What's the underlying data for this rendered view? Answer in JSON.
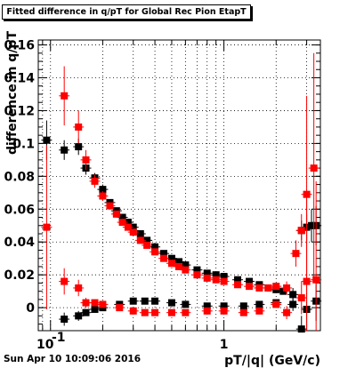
{
  "title": "Fitted difference in q/pT for Global Rec Pion EtapT",
  "footer_timestamp": "Sun Apr 10 10:09:06 2016",
  "chart_data": {
    "type": "scatter",
    "title": "Fitted difference in q/pT for Global Rec Pion EtapT",
    "xlabel": "pT/|q| (GeV/c)",
    "ylabel": "difference in q/pT",
    "x_scale": "log",
    "xlim": [
      0.085,
      3.6
    ],
    "ylim": [
      -0.014,
      0.163
    ],
    "grid": true,
    "x_ticks": [
      {
        "value": 0.1,
        "label": "10",
        "sup": "-1"
      },
      {
        "value": 1,
        "label": "1",
        "sup": ""
      }
    ],
    "y_ticks": [
      {
        "value": 0,
        "label": "0"
      },
      {
        "value": 0.02,
        "label": "0.02"
      },
      {
        "value": 0.04,
        "label": "0.04"
      },
      {
        "value": 0.06,
        "label": "0.06"
      },
      {
        "value": 0.08,
        "label": "0.08"
      },
      {
        "value": 0.1,
        "label": "0.1"
      },
      {
        "value": 0.12,
        "label": "0.12"
      },
      {
        "value": 0.14,
        "label": "0.14"
      },
      {
        "value": 0.16,
        "label": "0.16"
      }
    ],
    "series": [
      {
        "color": "#000000",
        "points": [
          {
            "x": 0.095,
            "y": 0.102,
            "err": 0.012
          },
          {
            "x": 0.12,
            "y": 0.096,
            "err": 0.006
          },
          {
            "x": 0.145,
            "y": 0.098,
            "err": 0.005
          },
          {
            "x": 0.16,
            "y": 0.085,
            "err": 0.004
          },
          {
            "x": 0.18,
            "y": 0.079,
            "err": 0.003
          },
          {
            "x": 0.2,
            "y": 0.072,
            "err": 0.003
          },
          {
            "x": 0.22,
            "y": 0.064,
            "err": 0.002
          },
          {
            "x": 0.24,
            "y": 0.059,
            "err": 0.002
          },
          {
            "x": 0.26,
            "y": 0.055,
            "err": 0.002
          },
          {
            "x": 0.28,
            "y": 0.052,
            "err": 0.002
          },
          {
            "x": 0.3,
            "y": 0.049,
            "err": 0.002
          },
          {
            "x": 0.33,
            "y": 0.045,
            "err": 0.001
          },
          {
            "x": 0.36,
            "y": 0.041,
            "err": 0.001
          },
          {
            "x": 0.4,
            "y": 0.037,
            "err": 0.001
          },
          {
            "x": 0.45,
            "y": 0.033,
            "err": 0.001
          },
          {
            "x": 0.5,
            "y": 0.03,
            "err": 0.001
          },
          {
            "x": 0.55,
            "y": 0.028,
            "err": 0.001
          },
          {
            "x": 0.6,
            "y": 0.026,
            "err": 0.001
          },
          {
            "x": 0.7,
            "y": 0.023,
            "err": 0.001
          },
          {
            "x": 0.8,
            "y": 0.021,
            "err": 0.001
          },
          {
            "x": 0.9,
            "y": 0.02,
            "err": 0.001
          },
          {
            "x": 1.0,
            "y": 0.019,
            "err": 0.001
          },
          {
            "x": 1.2,
            "y": 0.017,
            "err": 0.001
          },
          {
            "x": 1.4,
            "y": 0.016,
            "err": 0.001
          },
          {
            "x": 1.6,
            "y": 0.014,
            "err": 0.001
          },
          {
            "x": 1.8,
            "y": 0.012,
            "err": 0.001
          },
          {
            "x": 2.0,
            "y": 0.011,
            "err": 0.002
          },
          {
            "x": 2.2,
            "y": 0.01,
            "err": 0.002
          },
          {
            "x": 2.5,
            "y": 0.008,
            "err": 0.004
          },
          {
            "x": 2.8,
            "y": 0.047,
            "err": 0.006
          },
          {
            "x": 3.0,
            "y": 0.049,
            "err": 0.008
          },
          {
            "x": 3.2,
            "y": 0.05,
            "err": 0.01
          },
          {
            "x": 3.4,
            "y": 0.05,
            "err": 0.012
          },
          {
            "x": 0.12,
            "y": -0.007,
            "err": 0.004
          },
          {
            "x": 0.145,
            "y": -0.005,
            "err": 0.003
          },
          {
            "x": 0.16,
            "y": -0.003,
            "err": 0.002
          },
          {
            "x": 0.18,
            "y": -0.001,
            "err": 0.002
          },
          {
            "x": 0.2,
            "y": 0.0,
            "err": 0.001
          },
          {
            "x": 0.25,
            "y": 0.002,
            "err": 0.001
          },
          {
            "x": 0.3,
            "y": 0.004,
            "err": 0.001
          },
          {
            "x": 0.35,
            "y": 0.004,
            "err": 0.001
          },
          {
            "x": 0.4,
            "y": 0.004,
            "err": 0.001
          },
          {
            "x": 0.5,
            "y": 0.003,
            "err": 0.001
          },
          {
            "x": 0.6,
            "y": 0.002,
            "err": 0.001
          },
          {
            "x": 0.8,
            "y": 0.001,
            "err": 0.001
          },
          {
            "x": 1.0,
            "y": 0.001,
            "err": 0.001
          },
          {
            "x": 1.3,
            "y": 0.001,
            "err": 0.001
          },
          {
            "x": 1.6,
            "y": 0.002,
            "err": 0.001
          },
          {
            "x": 2.0,
            "y": 0.003,
            "err": 0.002
          },
          {
            "x": 2.5,
            "y": 0.002,
            "err": 0.004
          },
          {
            "x": 2.8,
            "y": -0.013,
            "err": 0.008
          },
          {
            "x": 3.0,
            "y": -0.001,
            "err": 0.01
          },
          {
            "x": 3.4,
            "y": 0.004,
            "err": 0.012
          }
        ]
      },
      {
        "color": "#ff0000",
        "points": [
          {
            "x": 0.095,
            "y": 0.049,
            "err": 0.05
          },
          {
            "x": 0.12,
            "y": 0.129,
            "err": 0.018
          },
          {
            "x": 0.145,
            "y": 0.11,
            "err": 0.01
          },
          {
            "x": 0.16,
            "y": 0.09,
            "err": 0.006
          },
          {
            "x": 0.18,
            "y": 0.077,
            "err": 0.004
          },
          {
            "x": 0.2,
            "y": 0.068,
            "err": 0.003
          },
          {
            "x": 0.22,
            "y": 0.062,
            "err": 0.002
          },
          {
            "x": 0.24,
            "y": 0.057,
            "err": 0.002
          },
          {
            "x": 0.26,
            "y": 0.052,
            "err": 0.002
          },
          {
            "x": 0.28,
            "y": 0.049,
            "err": 0.002
          },
          {
            "x": 0.3,
            "y": 0.046,
            "err": 0.001
          },
          {
            "x": 0.33,
            "y": 0.041,
            "err": 0.001
          },
          {
            "x": 0.36,
            "y": 0.038,
            "err": 0.001
          },
          {
            "x": 0.4,
            "y": 0.034,
            "err": 0.001
          },
          {
            "x": 0.45,
            "y": 0.03,
            "err": 0.001
          },
          {
            "x": 0.5,
            "y": 0.027,
            "err": 0.001
          },
          {
            "x": 0.55,
            "y": 0.025,
            "err": 0.001
          },
          {
            "x": 0.6,
            "y": 0.023,
            "err": 0.001
          },
          {
            "x": 0.7,
            "y": 0.02,
            "err": 0.001
          },
          {
            "x": 0.8,
            "y": 0.018,
            "err": 0.001
          },
          {
            "x": 0.9,
            "y": 0.017,
            "err": 0.001
          },
          {
            "x": 1.0,
            "y": 0.016,
            "err": 0.001
          },
          {
            "x": 1.2,
            "y": 0.014,
            "err": 0.001
          },
          {
            "x": 1.4,
            "y": 0.013,
            "err": 0.001
          },
          {
            "x": 1.6,
            "y": 0.012,
            "err": 0.001
          },
          {
            "x": 1.8,
            "y": 0.012,
            "err": 0.001
          },
          {
            "x": 2.0,
            "y": 0.013,
            "err": 0.002
          },
          {
            "x": 2.3,
            "y": 0.012,
            "err": 0.004
          },
          {
            "x": 2.6,
            "y": 0.033,
            "err": 0.008
          },
          {
            "x": 2.8,
            "y": 0.047,
            "err": 0.01
          },
          {
            "x": 3.0,
            "y": 0.069,
            "err": 0.06
          },
          {
            "x": 3.3,
            "y": 0.085,
            "err": 0.07
          },
          {
            "x": 0.12,
            "y": 0.016,
            "err": 0.008
          },
          {
            "x": 0.145,
            "y": 0.012,
            "err": 0.005
          },
          {
            "x": 0.16,
            "y": 0.003,
            "err": 0.003
          },
          {
            "x": 0.18,
            "y": 0.003,
            "err": 0.002
          },
          {
            "x": 0.2,
            "y": 0.002,
            "err": 0.002
          },
          {
            "x": 0.25,
            "y": 0.0,
            "err": 0.001
          },
          {
            "x": 0.3,
            "y": -0.002,
            "err": 0.001
          },
          {
            "x": 0.35,
            "y": -0.003,
            "err": 0.001
          },
          {
            "x": 0.4,
            "y": -0.003,
            "err": 0.001
          },
          {
            "x": 0.5,
            "y": -0.003,
            "err": 0.001
          },
          {
            "x": 0.6,
            "y": -0.003,
            "err": 0.001
          },
          {
            "x": 0.8,
            "y": -0.002,
            "err": 0.001
          },
          {
            "x": 1.0,
            "y": -0.002,
            "err": 0.001
          },
          {
            "x": 1.3,
            "y": -0.003,
            "err": 0.001
          },
          {
            "x": 1.6,
            "y": -0.002,
            "err": 0.001
          },
          {
            "x": 2.0,
            "y": 0.002,
            "err": 0.002
          },
          {
            "x": 2.3,
            "y": -0.003,
            "err": 0.004
          },
          {
            "x": 2.8,
            "y": 0.006,
            "err": 0.01
          },
          {
            "x": 3.0,
            "y": 0.016,
            "err": 0.05
          },
          {
            "x": 3.4,
            "y": 0.017,
            "err": 0.06
          }
        ]
      }
    ]
  }
}
